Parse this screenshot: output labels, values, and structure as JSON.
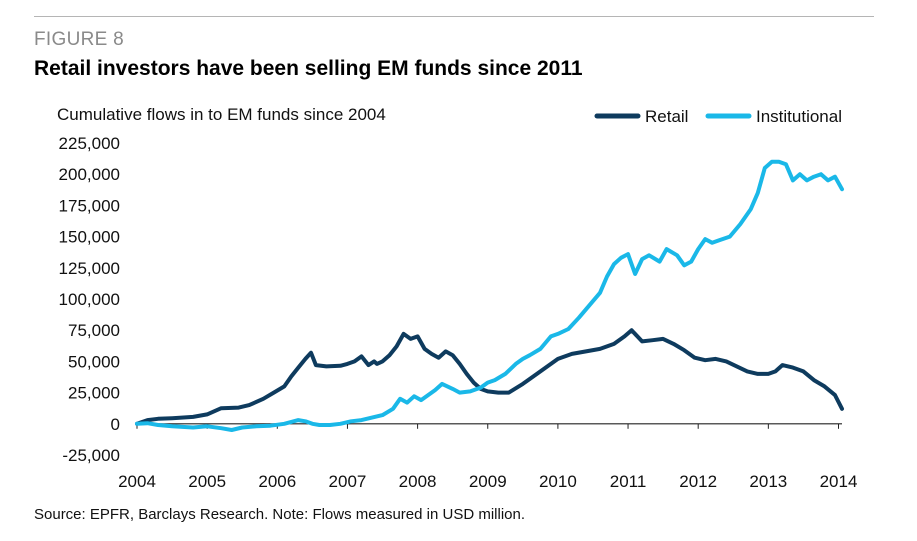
{
  "figure": {
    "label": "FIGURE 8",
    "title": "Retail investors have been selling EM funds since 2011",
    "source": "Source: EPFR, Barclays Research. Note: Flows measured in USD million."
  },
  "colors": {
    "retail": "#0e3b5e",
    "institutional": "#1ab8e8",
    "axis": "#222222",
    "text": "#111111"
  },
  "chart_data": {
    "type": "line",
    "title": "Cumulative flows in to EM funds since 2004",
    "xlabel": "",
    "ylabel": "",
    "xlim": [
      2004,
      2014.05
    ],
    "ylim": [
      -25000,
      225000
    ],
    "x_ticks": [
      2004,
      2005,
      2006,
      2007,
      2008,
      2009,
      2010,
      2011,
      2012,
      2013,
      2014
    ],
    "y_ticks": [
      -25000,
      0,
      25000,
      50000,
      75000,
      100000,
      125000,
      150000,
      175000,
      200000,
      225000
    ],
    "y_tick_labels": [
      "-25,000",
      "0",
      "25,000",
      "50,000",
      "75,000",
      "100,000",
      "125,000",
      "150,000",
      "175,000",
      "200,000",
      "225,000"
    ],
    "grid": false,
    "legend": "top-right",
    "series": [
      {
        "name": "Retail",
        "x": [
          2004.0,
          2004.15,
          2004.3,
          2004.5,
          2004.8,
          2005.0,
          2005.2,
          2005.45,
          2005.6,
          2005.8,
          2005.95,
          2006.1,
          2006.2,
          2006.3,
          2006.4,
          2006.48,
          2006.55,
          2006.7,
          2006.9,
          2007.0,
          2007.1,
          2007.2,
          2007.3,
          2007.38,
          2007.42,
          2007.5,
          2007.6,
          2007.7,
          2007.8,
          2007.9,
          2008.0,
          2008.1,
          2008.2,
          2008.3,
          2008.4,
          2008.5,
          2008.6,
          2008.7,
          2008.8,
          2008.9,
          2009.0,
          2009.15,
          2009.3,
          2009.5,
          2009.7,
          2009.9,
          2010.0,
          2010.2,
          2010.4,
          2010.6,
          2010.8,
          2010.95,
          2011.05,
          2011.2,
          2011.35,
          2011.5,
          2011.65,
          2011.8,
          2011.95,
          2012.1,
          2012.25,
          2012.4,
          2012.55,
          2012.7,
          2012.85,
          2013.0,
          2013.1,
          2013.2,
          2013.35,
          2013.5,
          2013.65,
          2013.8,
          2013.95,
          2014.05
        ],
        "values": [
          0,
          3000,
          4000,
          4500,
          5500,
          7500,
          12500,
          13000,
          15000,
          20000,
          25000,
          30000,
          38000,
          45000,
          52000,
          57000,
          47000,
          46000,
          46500,
          48000,
          50000,
          54000,
          47000,
          50000,
          48000,
          50000,
          55000,
          62000,
          72000,
          68000,
          70000,
          60000,
          56000,
          53000,
          58000,
          55000,
          48000,
          40000,
          33000,
          28000,
          26000,
          25000,
          25000,
          32000,
          40000,
          48000,
          52000,
          56000,
          58000,
          60000,
          64000,
          70000,
          75000,
          66000,
          67000,
          68000,
          64000,
          59000,
          53000,
          51000,
          52000,
          50000,
          46000,
          42000,
          40000,
          40000,
          42000,
          47000,
          45000,
          42000,
          35000,
          30000,
          23000,
          12000
        ]
      },
      {
        "name": "Institutional",
        "x": [
          2004.0,
          2004.15,
          2004.3,
          2004.5,
          2004.8,
          2005.0,
          2005.2,
          2005.35,
          2005.5,
          2005.7,
          2005.9,
          2006.1,
          2006.3,
          2006.4,
          2006.5,
          2006.6,
          2006.75,
          2006.9,
          2007.05,
          2007.2,
          2007.35,
          2007.5,
          2007.65,
          2007.75,
          2007.85,
          2007.95,
          2008.05,
          2008.15,
          2008.25,
          2008.35,
          2008.5,
          2008.6,
          2008.75,
          2008.9,
          2009.0,
          2009.1,
          2009.25,
          2009.4,
          2009.5,
          2009.6,
          2009.75,
          2009.9,
          2010.0,
          2010.15,
          2010.3,
          2010.45,
          2010.6,
          2010.7,
          2010.8,
          2010.9,
          2011.0,
          2011.1,
          2011.2,
          2011.3,
          2011.45,
          2011.55,
          2011.7,
          2011.8,
          2011.9,
          2012.0,
          2012.1,
          2012.2,
          2012.3,
          2012.45,
          2012.6,
          2012.75,
          2012.85,
          2012.95,
          2013.05,
          2013.15,
          2013.25,
          2013.35,
          2013.45,
          2013.55,
          2013.65,
          2013.75,
          2013.85,
          2013.95,
          2014.05
        ],
        "values": [
          0,
          500,
          -1000,
          -2000,
          -3000,
          -2000,
          -3500,
          -5000,
          -3000,
          -2000,
          -1500,
          0,
          3000,
          2000,
          0,
          -1000,
          -1000,
          0,
          2000,
          3000,
          5000,
          7000,
          12000,
          20000,
          17000,
          22000,
          19000,
          23000,
          27000,
          32000,
          28000,
          25000,
          26000,
          29000,
          33000,
          35000,
          40000,
          48000,
          52000,
          55000,
          60000,
          70000,
          72000,
          76000,
          85000,
          95000,
          105000,
          118000,
          128000,
          133000,
          136000,
          120000,
          132000,
          135000,
          130000,
          140000,
          135000,
          127000,
          130000,
          140000,
          148000,
          145000,
          147000,
          150000,
          160000,
          172000,
          185000,
          205000,
          210000,
          210000,
          208000,
          195000,
          200000,
          195000,
          198000,
          200000,
          195000,
          198000,
          188000
        ]
      }
    ]
  }
}
